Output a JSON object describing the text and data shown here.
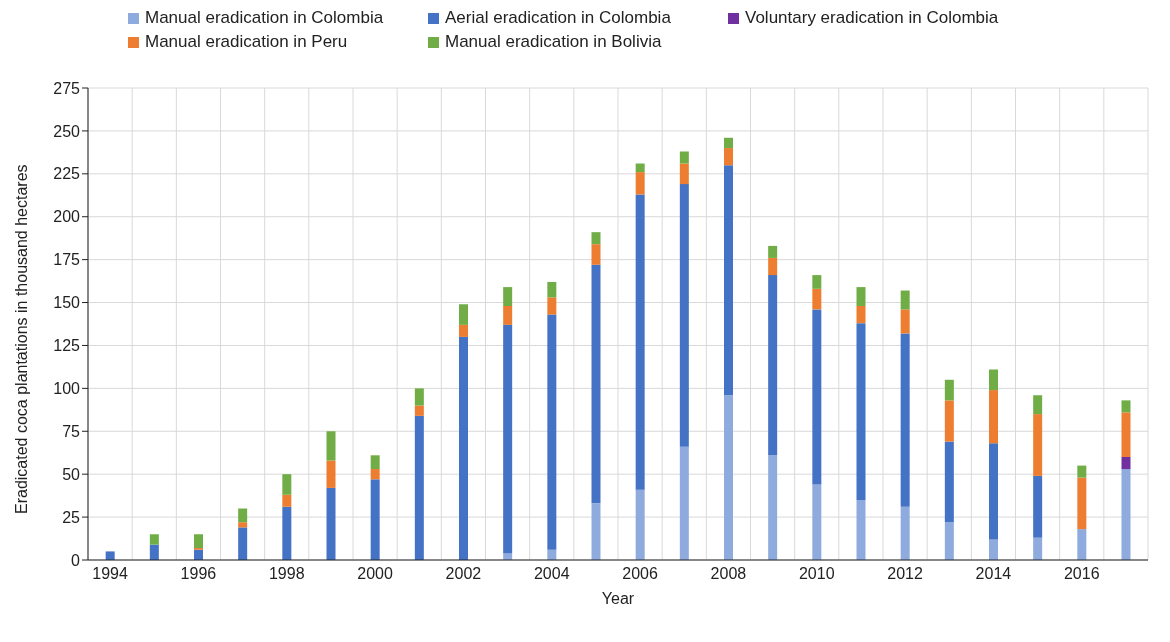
{
  "chart_data": {
    "type": "bar",
    "stacked": true,
    "xlabel": "Year",
    "ylabel": "Eradicated coca plantations in thousand hectares",
    "categories": [
      "1994",
      null,
      "1996",
      null,
      "1998",
      null,
      "2000",
      null,
      "2002",
      null,
      "2004",
      null,
      "2006",
      null,
      "2008",
      null,
      "2010",
      null,
      "2012",
      null,
      "2014",
      null,
      "2016",
      null
    ],
    "series": [
      {
        "name": "Manual eradication in Colombia",
        "color": "#8faadc",
        "values": [
          0,
          0,
          0,
          0,
          0,
          0,
          0,
          0,
          0,
          4,
          6,
          33,
          41,
          66,
          96,
          61,
          44,
          35,
          31,
          22,
          12,
          13,
          18,
          53
        ]
      },
      {
        "name": "Aerial eradication in Colombia",
        "color": "#4472c4",
        "values": [
          5,
          9,
          6,
          19,
          31,
          42,
          47,
          84,
          130,
          133,
          137,
          139,
          172,
          153,
          134,
          105,
          102,
          103,
          101,
          47,
          56,
          36,
          0,
          0
        ]
      },
      {
        "name": "Voluntary eradication in Colombia",
        "color": "#7030a0",
        "values": [
          0,
          0,
          0,
          0,
          0,
          0,
          0,
          0,
          0,
          0,
          0,
          0,
          0,
          0,
          0,
          0,
          0,
          0,
          0,
          0,
          0,
          0,
          0,
          7
        ]
      },
      {
        "name": "Manual eradication in Peru",
        "color": "#ed7d31",
        "values": [
          0,
          0,
          1,
          3,
          7,
          16,
          6,
          6,
          7,
          11,
          10,
          12,
          13,
          12,
          10,
          10,
          12,
          10,
          14,
          24,
          31,
          36,
          30,
          26
        ]
      },
      {
        "name": "Manual eradication in Bolivia",
        "color": "#70ad47",
        "values": [
          0,
          6,
          8,
          8,
          12,
          17,
          8,
          10,
          12,
          11,
          9,
          7,
          5,
          7,
          6,
          7,
          8,
          11,
          11,
          12,
          12,
          11,
          7,
          7
        ]
      }
    ],
    "ylim": [
      0,
      275
    ],
    "yticks": [
      0,
      25,
      50,
      75,
      100,
      125,
      150,
      175,
      200,
      225,
      250,
      275
    ],
    "grid": true,
    "legend": "top"
  }
}
